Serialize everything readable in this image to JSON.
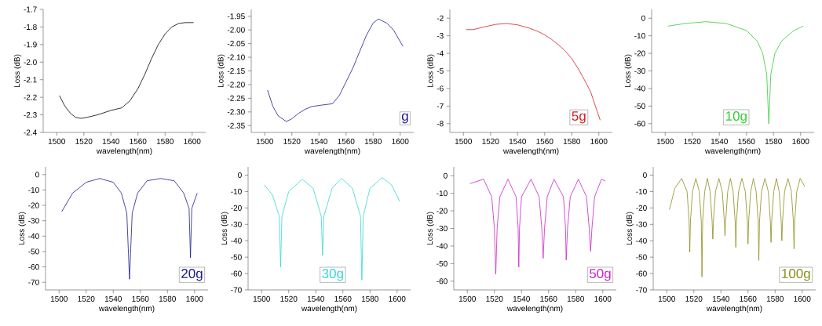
{
  "chart_data": [
    {
      "type": "line",
      "xlabel": "wavelength(nm)",
      "ylabel": "Loss (dB)",
      "xlim": [
        1490,
        1610
      ],
      "xticks": [
        1500,
        1520,
        1540,
        1560,
        1580,
        1600
      ],
      "ylim": [
        -2.4,
        -1.7
      ],
      "yticks": [
        -2.4,
        -2.3,
        -2.2,
        -2.1,
        {
          "value": -2.0,
          "label": "-2.0"
        },
        -1.9,
        -1.8,
        -1.7
      ],
      "x": [
        1502,
        1506,
        1510,
        1514,
        1518,
        1522,
        1530,
        1540,
        1548,
        1554,
        1560,
        1565,
        1570,
        1575,
        1580,
        1585,
        1590,
        1595,
        1601
      ],
      "series": [
        {
          "color": "#000000",
          "values": [
            -2.19,
            -2.25,
            -2.29,
            -2.315,
            -2.32,
            -2.315,
            -2.3,
            -2.275,
            -2.26,
            -2.22,
            -2.15,
            -2.07,
            -1.98,
            -1.9,
            -1.84,
            -1.8,
            -1.78,
            -1.775,
            -1.775
          ]
        }
      ]
    },
    {
      "type": "line",
      "xlabel": "wavelength(nm)",
      "ylabel": "Loss (dB)",
      "xlim": [
        1490,
        1610
      ],
      "xticks": [
        1500,
        1520,
        1540,
        1560,
        1580,
        1600
      ],
      "ylim": [
        -2.375,
        -1.925
      ],
      "yticks": [
        -2.35,
        {
          "value": -2.3,
          "label": "-2.30"
        },
        -2.25,
        {
          "value": -2.2,
          "label": "-2.20"
        },
        -2.15,
        {
          "value": -2.1,
          "label": "-2.10"
        },
        -2.05,
        {
          "value": -2.0,
          "label": "-2.00"
        },
        -1.95
      ],
      "annotations": [
        "g"
      ],
      "x": [
        1502,
        1506,
        1510,
        1516,
        1520,
        1525,
        1530,
        1535,
        1542,
        1550,
        1555,
        1560,
        1565,
        1570,
        1575,
        1580,
        1584,
        1590,
        1595,
        1602
      ],
      "series": [
        {
          "color": "#1a1a8c",
          "values": [
            -2.22,
            -2.28,
            -2.315,
            -2.335,
            -2.325,
            -2.305,
            -2.29,
            -2.28,
            -2.275,
            -2.27,
            -2.24,
            -2.19,
            -2.14,
            -2.08,
            -2.02,
            -1.975,
            -1.96,
            -1.975,
            -2.0,
            -2.06
          ]
        }
      ]
    },
    {
      "type": "line",
      "xlabel": "wavelength(nm)",
      "ylabel": "Loss (dB)",
      "xlim": [
        1490,
        1610
      ],
      "xticks": [
        1500,
        1520,
        1540,
        1560,
        1580,
        1600
      ],
      "ylim": [
        -8.5,
        -1.5
      ],
      "yticks": [
        -8,
        -7,
        -6,
        -5,
        -4,
        -3,
        -2
      ],
      "annotations": [
        "5g"
      ],
      "x": [
        1502,
        1507,
        1515,
        1524,
        1532,
        1540,
        1548,
        1555,
        1560,
        1565,
        1570,
        1575,
        1580,
        1585,
        1590,
        1594,
        1597,
        1601
      ],
      "series": [
        {
          "color": "#cc2020",
          "values": [
            -2.65,
            -2.65,
            -2.5,
            -2.35,
            -2.3,
            -2.38,
            -2.55,
            -2.75,
            -2.95,
            -3.2,
            -3.5,
            -3.85,
            -4.3,
            -4.9,
            -5.6,
            -6.2,
            -6.9,
            -7.8
          ]
        }
      ]
    },
    {
      "type": "line",
      "xlabel": "wavelength(nm)",
      "ylabel": "Loss (dB)",
      "xlim": [
        1490,
        1610
      ],
      "xticks": [
        1500,
        1520,
        1540,
        1560,
        1580,
        1600
      ],
      "ylim": [
        -65,
        5
      ],
      "yticks": [
        -60,
        -50,
        -40,
        -30,
        -20,
        -10,
        0
      ],
      "annotations": [
        "10g"
      ],
      "x": [
        1502,
        1515,
        1530,
        1545,
        1560,
        1568,
        1572,
        1575,
        1576.5,
        1578,
        1581,
        1586,
        1595,
        1602
      ],
      "series": [
        {
          "color": "#33cc33",
          "values": [
            -4.5,
            -3,
            -2,
            -3,
            -7,
            -13,
            -20,
            -32,
            -60,
            -32,
            -20,
            -13,
            -7,
            -4.5
          ]
        }
      ]
    },
    {
      "type": "line",
      "xlabel": "wavelength(nm)",
      "ylabel": "Loss (dB)",
      "xlim": [
        1490,
        1610
      ],
      "xticks": [
        1500,
        1520,
        1540,
        1560,
        1580,
        1600
      ],
      "ylim": [
        -75,
        5
      ],
      "yticks": [
        -70,
        -60,
        -50,
        -40,
        -30,
        -20,
        -10,
        0
      ],
      "annotations": [
        "20g"
      ],
      "x": [
        1502,
        1510,
        1520,
        1530,
        1540,
        1546,
        1550,
        1552,
        1554,
        1558,
        1565,
        1575,
        1585,
        1592,
        1596,
        1597,
        1598,
        1602
      ],
      "series": [
        {
          "color": "#1a1a8c",
          "values": [
            -24,
            -12,
            -5,
            -2.5,
            -5,
            -12,
            -25,
            -68,
            -25,
            -12,
            -4,
            -2.5,
            -4,
            -12,
            -22,
            -54,
            -22,
            -12
          ]
        }
      ]
    },
    {
      "type": "line",
      "xlabel": "wavelength(nm)",
      "ylabel": "Loss (dB)",
      "xlim": [
        1490,
        1610
      ],
      "xticks": [
        1500,
        1520,
        1540,
        1560,
        1580,
        1600
      ],
      "ylim": [
        -70,
        5
      ],
      "yticks": [
        -70,
        -60,
        -50,
        -40,
        -30,
        -20,
        -10,
        0
      ],
      "annotations": [
        "30g"
      ],
      "x": [
        1502,
        1508,
        1513,
        1514,
        1515,
        1520,
        1530,
        1538,
        1544,
        1545,
        1546,
        1552,
        1559,
        1567,
        1573,
        1574,
        1575,
        1580,
        1589,
        1596,
        1602
      ],
      "series": [
        {
          "color": "#33d6d6",
          "values": [
            -6,
            -12,
            -25,
            -56,
            -25,
            -10,
            -2.5,
            -8,
            -25,
            -49,
            -25,
            -8,
            -2,
            -8,
            -25,
            -64,
            -25,
            -8,
            -1.5,
            -6,
            -16
          ]
        }
      ]
    },
    {
      "type": "line",
      "xlabel": "wavelength(nm)",
      "ylabel": "Loss (dB)",
      "xlim": [
        1490,
        1610
      ],
      "xticks": [
        1500,
        1520,
        1540,
        1560,
        1580,
        1600
      ],
      "ylim": [
        -65,
        5
      ],
      "yticks": [
        -60,
        -50,
        -40,
        -30,
        -20,
        -10,
        0
      ],
      "annotations": [
        "50g"
      ],
      "x": [
        1502,
        1512,
        1518,
        1520,
        1521,
        1522,
        1524,
        1530,
        1536,
        1537.5,
        1538,
        1538.5,
        1540,
        1547,
        1553,
        1555,
        1556,
        1557,
        1559,
        1564,
        1571,
        1572.5,
        1573,
        1574,
        1576,
        1582,
        1588,
        1590,
        1591,
        1592,
        1594,
        1599,
        1602
      ],
      "series": [
        {
          "color": "#cc22cc",
          "values": [
            -4.5,
            -2,
            -12,
            -30,
            -56,
            -30,
            -12,
            -2,
            -12,
            -30,
            -52,
            -30,
            -12,
            -2,
            -12,
            -30,
            -47,
            -30,
            -12,
            -2,
            -12,
            -30,
            -48,
            -30,
            -12,
            -2,
            -12,
            -30,
            -43,
            -30,
            -12,
            -2,
            -3
          ]
        }
      ]
    },
    {
      "type": "line",
      "xlabel": "wavelength(nm)",
      "ylabel": "Loss (dB)",
      "xlim": [
        1490,
        1610
      ],
      "xticks": [
        1500,
        1520,
        1540,
        1560,
        1580,
        1600
      ],
      "ylim": [
        -70,
        5
      ],
      "yticks": [
        -70,
        -60,
        -50,
        -40,
        -30,
        -20,
        -10,
        0
      ],
      "annotations": [
        "100g"
      ],
      "x": [
        1502,
        1506,
        1511,
        1515,
        1516.5,
        1517,
        1517.5,
        1519,
        1521.5,
        1524,
        1525.5,
        1526,
        1526.5,
        1528,
        1530,
        1532,
        1533.5,
        1534,
        1534.5,
        1536,
        1538.5,
        1541,
        1542.5,
        1543,
        1543.5,
        1545,
        1547,
        1549,
        1550.5,
        1551,
        1551.5,
        1553,
        1555.5,
        1558,
        1559.5,
        1560,
        1560.5,
        1562,
        1564,
        1566,
        1567.5,
        1568,
        1568.5,
        1570,
        1572.5,
        1575,
        1576.5,
        1577,
        1577.5,
        1579,
        1581,
        1583,
        1584.5,
        1585,
        1585.5,
        1587,
        1589.5,
        1592,
        1593.5,
        1594,
        1594.5,
        1596,
        1598.5,
        1602
      ],
      "series": [
        {
          "color": "#8c8c1a",
          "values": [
            -21,
            -8,
            -2,
            -10,
            -28,
            -47,
            -28,
            -10,
            -2,
            -10,
            -28,
            -62,
            -28,
            -10,
            -2,
            -10,
            -28,
            -39,
            -28,
            -10,
            -2,
            -10,
            -28,
            -37,
            -28,
            -10,
            -2,
            -10,
            -28,
            -44,
            -28,
            -10,
            -2,
            -10,
            -28,
            -42,
            -28,
            -10,
            -2,
            -10,
            -28,
            -52,
            -28,
            -10,
            -2,
            -10,
            -28,
            -41,
            -28,
            -10,
            -2,
            -10,
            -28,
            -40,
            -28,
            -10,
            -2,
            -10,
            -28,
            -45,
            -28,
            -10,
            -2,
            -7
          ]
        }
      ]
    }
  ]
}
